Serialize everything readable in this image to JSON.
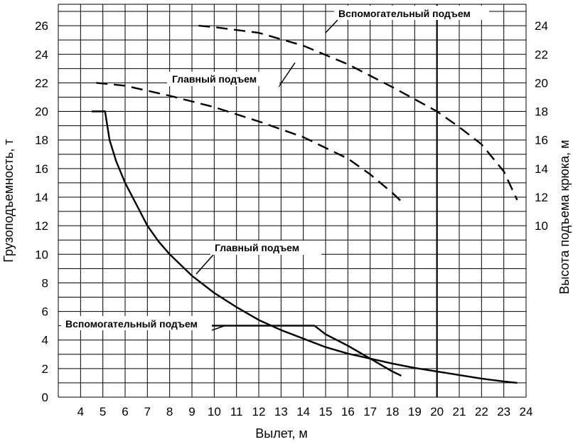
{
  "chart_data": {
    "type": "line",
    "xlabel": "Вылет, м",
    "ylabel": "Грузоподъемность, т",
    "y2label": "Высота подъема крюка, м",
    "xlim": [
      3,
      24
    ],
    "ylim": [
      0,
      27.5
    ],
    "y2lim": [
      10,
      24
    ],
    "x_ticks": [
      "4",
      "5",
      "6",
      "7",
      "8",
      "9",
      "10",
      "11",
      "12",
      "13",
      "14",
      "15",
      "16",
      "17",
      "18",
      "19",
      "20",
      "21",
      "22",
      "23",
      "24"
    ],
    "y_ticks": [
      "0",
      "2",
      "4",
      "6",
      "8",
      "10",
      "12",
      "14",
      "16",
      "18",
      "20",
      "22",
      "24",
      "26"
    ],
    "y2_ticks": [
      "10",
      "12",
      "14",
      "16",
      "18",
      "20",
      "22",
      "24"
    ],
    "grid": true,
    "reference_line_x": 20,
    "series": [
      {
        "name": "Главный подъем",
        "axis": "left",
        "style": "solid",
        "x": [
          4.5,
          5.1,
          5.3,
          5.6,
          6.0,
          6.5,
          7.0,
          7.5,
          8.0,
          9.0,
          10.0,
          11.0,
          12.0,
          13.0,
          14.0,
          15.0,
          16.0,
          17.0,
          18.0,
          19.0,
          20.0,
          21.0,
          22.0,
          23.0,
          23.6
        ],
        "y": [
          20,
          20,
          18,
          16.5,
          15,
          13.5,
          12,
          10.9,
          10,
          8.5,
          7.3,
          6.3,
          5.4,
          4.7,
          4.1,
          3.5,
          3.05,
          2.7,
          2.35,
          2.05,
          1.8,
          1.55,
          1.3,
          1.1,
          1.0
        ]
      },
      {
        "name": "Вспомогательный подъем",
        "axis": "left",
        "style": "solid",
        "x": [
          9.3,
          14.5,
          15.0,
          16.0,
          17.0,
          18.0,
          18.4
        ],
        "y": [
          5,
          5,
          4.4,
          3.6,
          2.7,
          1.8,
          1.5
        ]
      },
      {
        "name": "Главный подъем",
        "axis": "right",
        "style": "dashed",
        "x": [
          4.7,
          6.0,
          8.0,
          10.0,
          12.0,
          14.0,
          16.0,
          17.0,
          18.0,
          18.4
        ],
        "y": [
          20.0,
          19.8,
          19.1,
          18.3,
          17.3,
          16.2,
          14.7,
          13.6,
          12.3,
          11.7
        ]
      },
      {
        "name": "Вспомогательный подъем",
        "axis": "right",
        "style": "dashed",
        "x": [
          9.3,
          10.0,
          12.0,
          14.0,
          16.0,
          18.0,
          20.0,
          21.0,
          22.0,
          23.0,
          23.6
        ],
        "y": [
          24.0,
          23.9,
          23.5,
          22.6,
          21.3,
          19.7,
          18.0,
          16.9,
          15.7,
          13.8,
          11.8
        ]
      }
    ],
    "annotations": [
      {
        "text": "Вспомогательный подъем",
        "target": "dashed-auxiliary"
      },
      {
        "text": "Главный подъем",
        "target": "dashed-main"
      },
      {
        "text": "Главный подъем",
        "target": "solid-main"
      },
      {
        "text": "Вспомогательный подъем",
        "target": "solid-auxiliary"
      }
    ]
  }
}
